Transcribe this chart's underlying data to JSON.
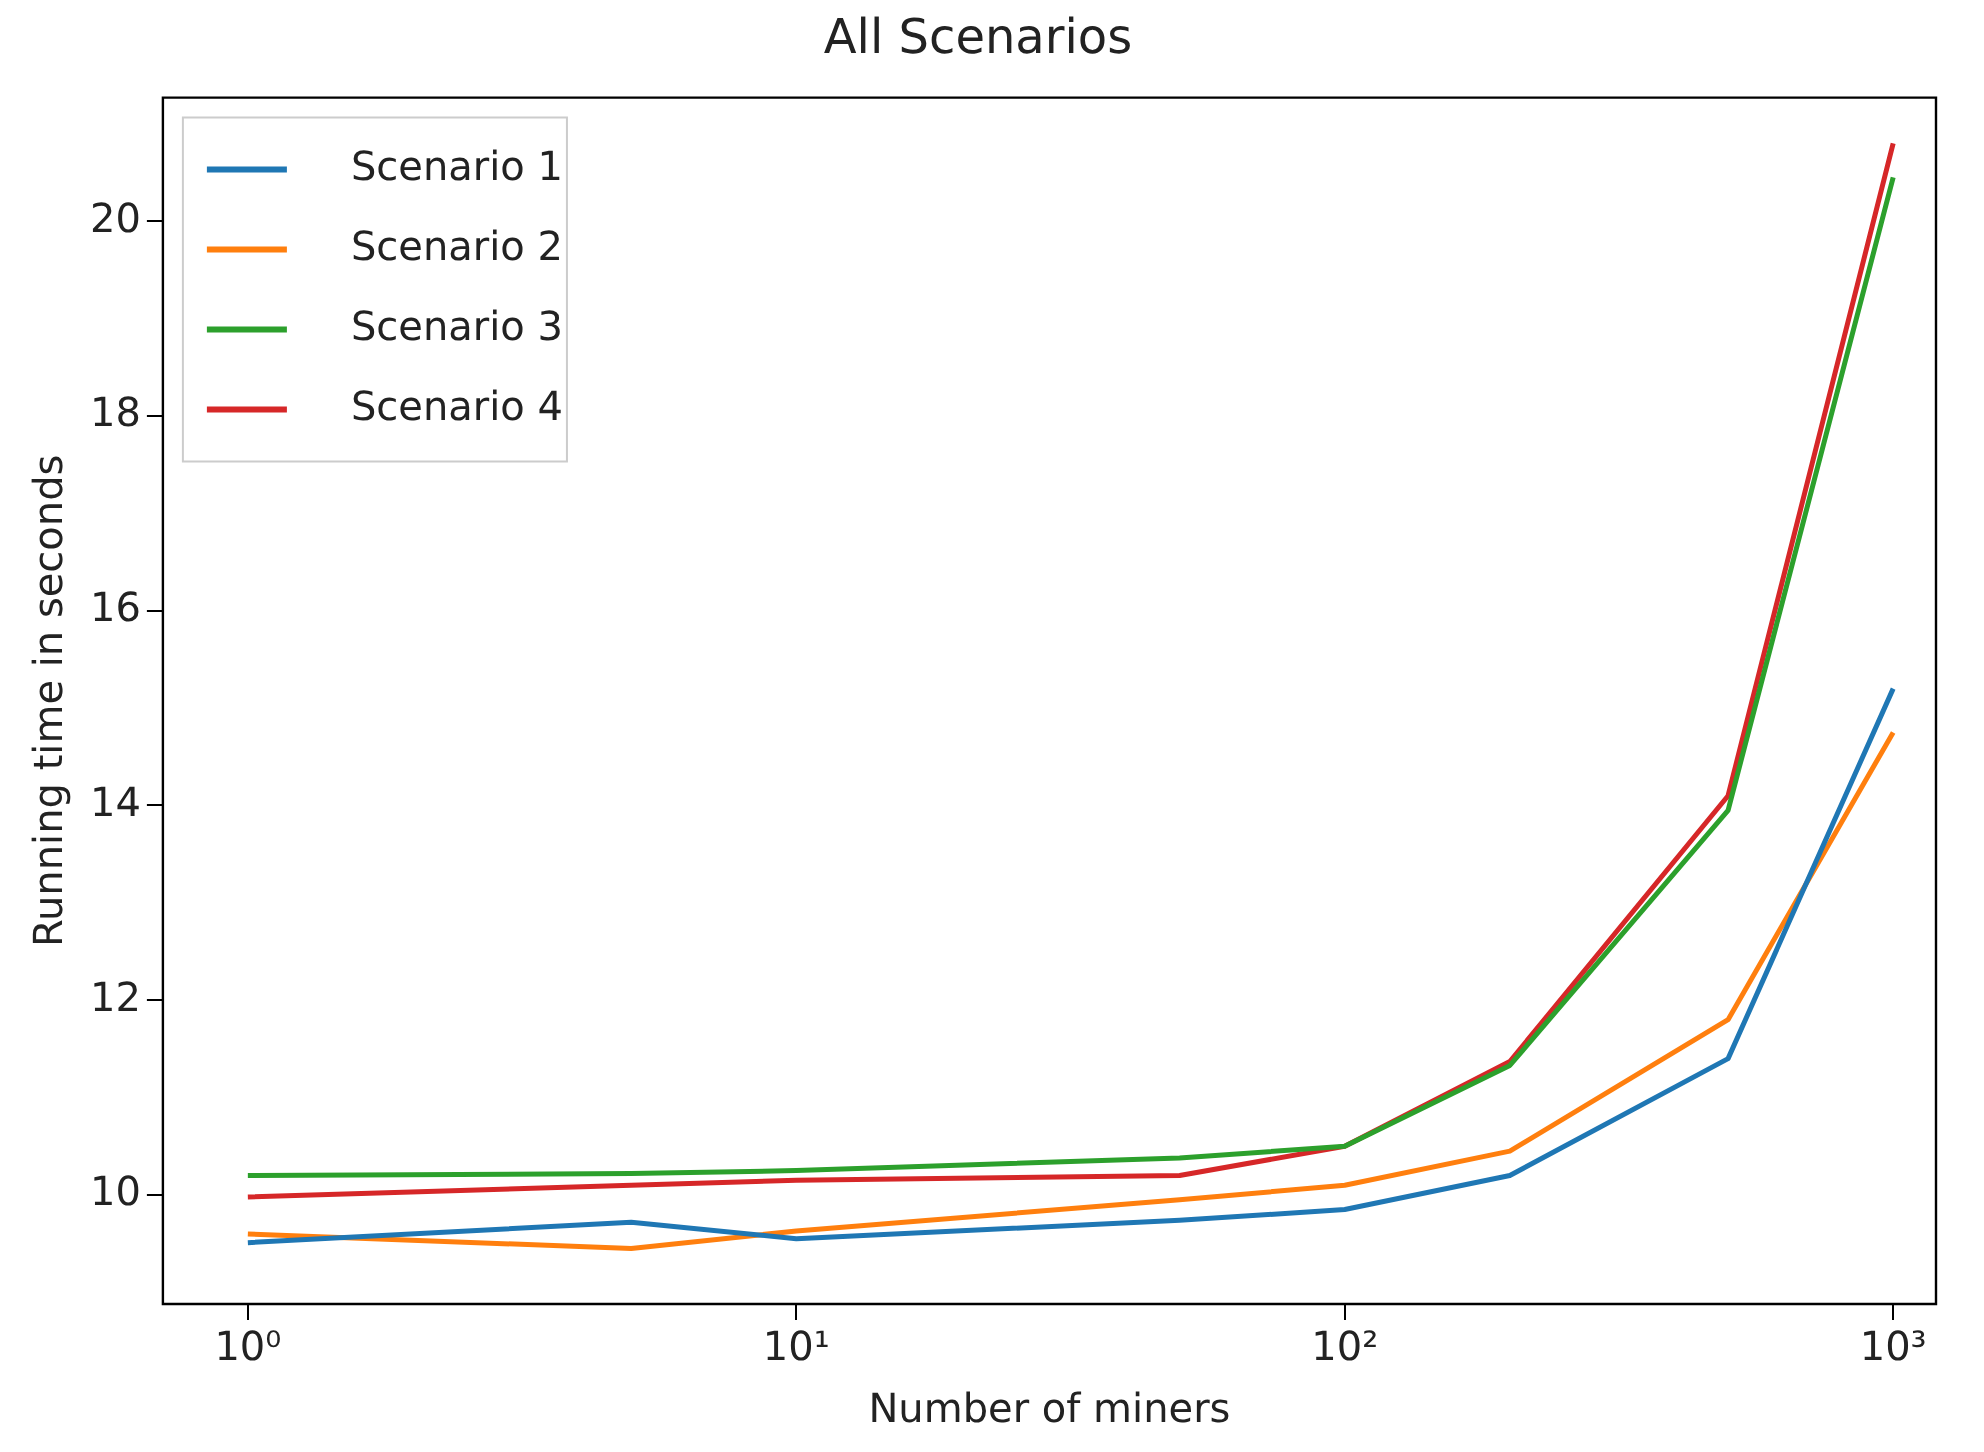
{
  "chart_data": {
    "type": "line",
    "title": "All Scenarios",
    "xlabel": "Number of miners",
    "ylabel": "Running time in seconds",
    "x": [
      1,
      5,
      10,
      50,
      100,
      200,
      500,
      1000
    ],
    "series": [
      {
        "name": "Scenario 1",
        "color": "#1f77b4",
        "values": [
          9.51,
          9.72,
          9.55,
          9.74,
          9.85,
          10.2,
          11.4,
          15.2
        ]
      },
      {
        "name": "Scenario 2",
        "color": "#ff7f0e",
        "values": [
          9.6,
          9.45,
          9.63,
          9.95,
          10.1,
          10.45,
          11.8,
          14.75
        ]
      },
      {
        "name": "Scenario 3",
        "color": "#2ca02c",
        "values": [
          10.2,
          10.22,
          10.25,
          10.38,
          10.5,
          11.33,
          13.95,
          20.45
        ]
      },
      {
        "name": "Scenario 4",
        "color": "#d62728",
        "values": [
          9.98,
          10.1,
          10.15,
          10.2,
          10.5,
          11.37,
          14.1,
          20.8
        ]
      }
    ],
    "log": "x",
    "xlim": [
      0.705,
      1197
    ],
    "ylim": [
      8.88,
      21.27
    ],
    "xticks": [
      {
        "value": 1,
        "label": "10⁰"
      },
      {
        "value": 10,
        "label": "10¹"
      },
      {
        "value": 100,
        "label": "10²"
      },
      {
        "value": 1000,
        "label": "10³"
      }
    ],
    "yticks": [
      10,
      12,
      14,
      16,
      18,
      20
    ],
    "grid": false,
    "legend": "top left",
    "marker": "none",
    "line_style": "solid"
  }
}
